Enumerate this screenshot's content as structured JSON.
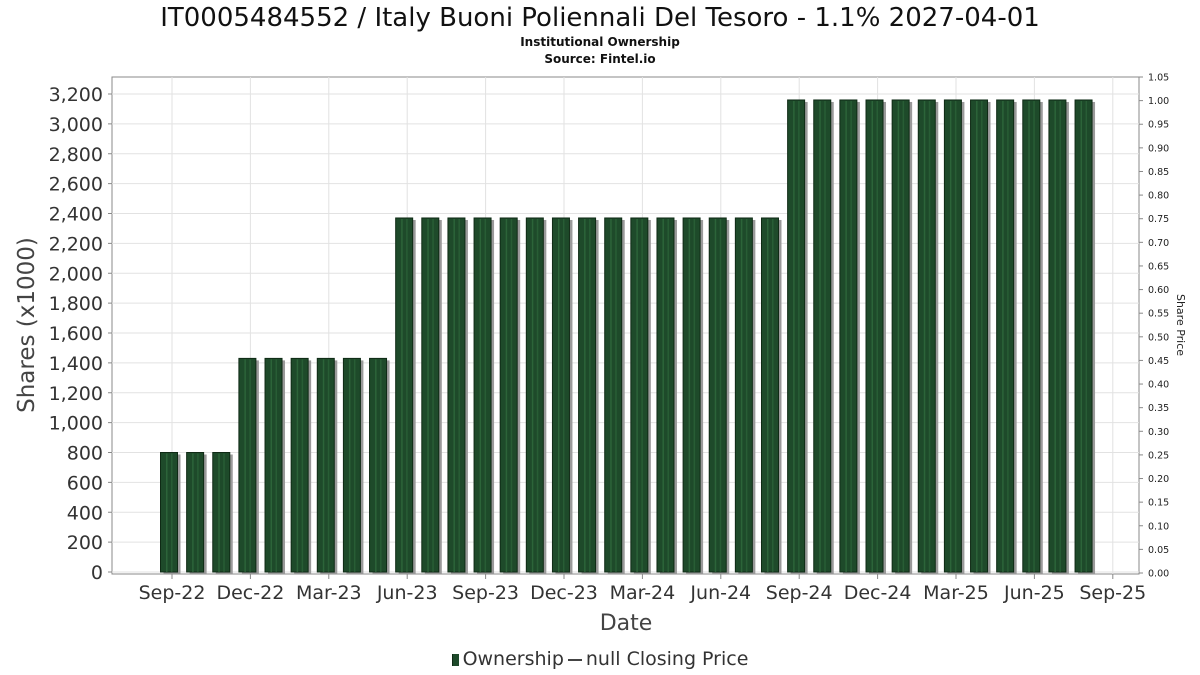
{
  "chart_data": {
    "type": "bar",
    "title": "IT0005484552 / Italy Buoni Poliennali Del Tesoro - 1.1% 2027-04-01",
    "subtitle": "Institutional Ownership",
    "source": "Source: Fintel.io",
    "xlabel": "Date",
    "ylabel": "Shares (x1000)",
    "ylabel_right": "Share Price",
    "ylim": [
      0,
      3200
    ],
    "ylim_right": [
      0.0,
      1.05
    ],
    "yticks": [
      "0",
      "200",
      "400",
      "600",
      "800",
      "1,000",
      "1,200",
      "1,400",
      "1,600",
      "1,800",
      "2,000",
      "2,200",
      "2,400",
      "2,600",
      "2,800",
      "3,000",
      "3,200"
    ],
    "yticks_right": [
      "0.00",
      "0.05",
      "0.10",
      "0.15",
      "0.20",
      "0.25",
      "0.30",
      "0.35",
      "0.40",
      "0.45",
      "0.50",
      "0.55",
      "0.60",
      "0.65",
      "0.70",
      "0.75",
      "0.80",
      "0.85",
      "0.90",
      "0.95",
      "1.00",
      "1.05"
    ],
    "xticks": [
      "Sep-22",
      "Dec-22",
      "Mar-23",
      "Jun-23",
      "Sep-23",
      "Dec-23",
      "Mar-24",
      "Jun-24",
      "Sep-24",
      "Dec-24",
      "Mar-25",
      "Jun-25",
      "Sep-25"
    ],
    "grid": true,
    "legend_position": "bottom",
    "series": [
      {
        "name": "Ownership",
        "color": "#1e4a2a",
        "values": [
          800,
          800,
          800,
          1430,
          1430,
          1430,
          1430,
          1430,
          1430,
          2370,
          2370,
          2370,
          2370,
          2370,
          2370,
          2370,
          2370,
          2370,
          2370,
          2370,
          2370,
          2370,
          2370,
          2370,
          3160,
          3160,
          3160,
          3160,
          3160,
          3160,
          3160,
          3160,
          3160,
          3160,
          3160,
          3160
        ]
      }
    ],
    "legend": {
      "ownership": "Ownership",
      "price": "null Closing Price"
    }
  }
}
